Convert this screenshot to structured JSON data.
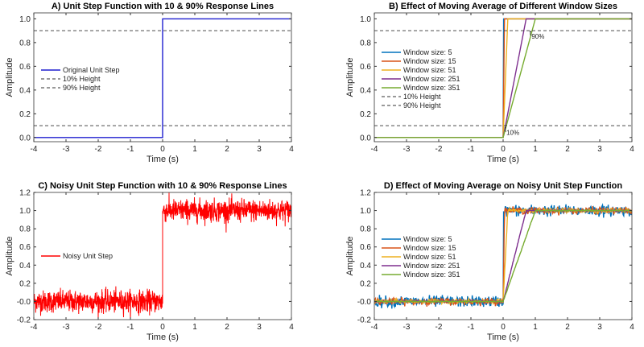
{
  "chart_data": [
    {
      "type": "line",
      "title": "A) Unit Step Function with 10 & 90% Response Lines",
      "xlabel": "Time (s)",
      "ylabel": "Amplitude",
      "xlim": [
        -4,
        4
      ],
      "ylim": [
        -0.05,
        1.05
      ],
      "xticks": [
        "-4",
        "-3",
        "-2",
        "-1",
        "0",
        "1",
        "2",
        "3",
        "4"
      ],
      "yticks": [
        "0.0",
        "0.2",
        "0.4",
        "0.6",
        "0.8",
        "1.0"
      ],
      "legend_position": "center-left",
      "series": [
        {
          "name": "Original Unit Step",
          "color": "#1f1fcf",
          "style": "solid",
          "points": [
            [
              -4,
              0
            ],
            [
              0,
              0
            ],
            [
              0,
              1
            ],
            [
              4,
              1
            ]
          ]
        },
        {
          "name": "10% Height",
          "color": "#333333",
          "style": "dashed",
          "points": [
            [
              -4,
              0.1
            ],
            [
              4,
              0.1
            ]
          ]
        },
        {
          "name": "90% Height",
          "color": "#333333",
          "style": "dashed",
          "points": [
            [
              -4,
              0.9
            ],
            [
              4,
              0.9
            ]
          ]
        }
      ]
    },
    {
      "type": "line",
      "title": "B) Effect of Moving Average of Different Window Sizes",
      "xlabel": "Time (s)",
      "ylabel": "Amplitude",
      "xlim": [
        -4,
        4
      ],
      "ylim": [
        -0.05,
        1.05
      ],
      "xticks": [
        "-4",
        "-3",
        "-2",
        "-1",
        "0",
        "1",
        "2",
        "3",
        "4"
      ],
      "yticks": [
        "0.0",
        "0.2",
        "0.4",
        "0.6",
        "0.8",
        "1.0"
      ],
      "legend_position": "center-left",
      "annotations": [
        {
          "text": "t",
          "sub": "90%",
          "x": 0.82,
          "y": 0.86
        },
        {
          "text": "t",
          "sub": "10%",
          "x": 0.04,
          "y": 0.05
        }
      ],
      "series": [
        {
          "name": "Window size: 5",
          "color": "#0072BD",
          "style": "solid",
          "points": [
            [
              -4,
              0
            ],
            [
              0,
              0
            ],
            [
              0.014,
              1
            ],
            [
              4,
              1
            ]
          ]
        },
        {
          "name": "Window size: 15",
          "color": "#D95319",
          "style": "solid",
          "points": [
            [
              -4,
              0
            ],
            [
              0,
              0
            ],
            [
              0.043,
              1
            ],
            [
              4,
              1
            ]
          ]
        },
        {
          "name": "Window size: 51",
          "color": "#EDB120",
          "style": "solid",
          "points": [
            [
              -4,
              0
            ],
            [
              0,
              0
            ],
            [
              0.145,
              1
            ],
            [
              4,
              1
            ]
          ]
        },
        {
          "name": "Window size: 251",
          "color": "#7E2F8E",
          "style": "solid",
          "points": [
            [
              -4,
              0
            ],
            [
              0,
              0
            ],
            [
              0.715,
              1
            ],
            [
              4,
              1
            ]
          ]
        },
        {
          "name": "Window size: 351",
          "color": "#77AC30",
          "style": "solid",
          "points": [
            [
              -4,
              0
            ],
            [
              0,
              0
            ],
            [
              1.0,
              1
            ],
            [
              4,
              1
            ]
          ]
        },
        {
          "name": "10% Height",
          "color": "#333333",
          "style": "dashed",
          "points": [
            [
              -4,
              0.1
            ],
            [
              4,
              0.1
            ]
          ]
        },
        {
          "name": "90% Height",
          "color": "#333333",
          "style": "dashed",
          "points": [
            [
              -4,
              0.9
            ],
            [
              4,
              0.9
            ]
          ]
        }
      ]
    },
    {
      "type": "line",
      "title": "C) Noisy Unit Step Function with 10 & 90% Response Lines",
      "xlabel": "Time (s)",
      "ylabel": "Amplitude",
      "xlim": [
        -4,
        4
      ],
      "ylim": [
        -0.2,
        1.2
      ],
      "xticks": [
        "-4",
        "-3",
        "-2",
        "-1",
        "0",
        "1",
        "2",
        "3",
        "4"
      ],
      "yticks": [
        "-0.2",
        "-0.0",
        "0.2",
        "0.4",
        "0.6",
        "0.8",
        "1.0",
        "1.2"
      ],
      "legend_position": "center-left",
      "series": [
        {
          "name": "Noisy Unit Step",
          "color": "#FF0000",
          "style": "solid",
          "points": [
            [
              -4,
              0
            ],
            [
              0,
              0
            ],
            [
              0,
              1
            ],
            [
              4,
              1
            ]
          ],
          "noise_std": 0.06
        }
      ]
    },
    {
      "type": "line",
      "title": "D) Effect of Moving Average on Noisy Unit Step Function",
      "xlabel": "Time (s)",
      "ylabel": "Amplitude",
      "xlim": [
        -4,
        4
      ],
      "ylim": [
        -0.2,
        1.2
      ],
      "xticks": [
        "-4",
        "-3",
        "-2",
        "-1",
        "0",
        "1",
        "2",
        "3",
        "4"
      ],
      "yticks": [
        "-0.2",
        "-0.0",
        "0.2",
        "0.4",
        "0.6",
        "0.8",
        "1.0",
        "1.2"
      ],
      "legend_position": "center-left",
      "series": [
        {
          "name": "Window size: 5",
          "color": "#0072BD",
          "style": "solid",
          "points": [
            [
              -4,
              0
            ],
            [
              0,
              0
            ],
            [
              0.014,
              1
            ],
            [
              4,
              1
            ]
          ],
          "noise_std": 0.03
        },
        {
          "name": "Window size: 15",
          "color": "#D95319",
          "style": "solid",
          "points": [
            [
              -4,
              0
            ],
            [
              0,
              0
            ],
            [
              0.043,
              1
            ],
            [
              4,
              1
            ]
          ],
          "noise_std": 0.018
        },
        {
          "name": "Window size: 51",
          "color": "#EDB120",
          "style": "solid",
          "points": [
            [
              -4,
              0
            ],
            [
              0,
              0
            ],
            [
              0.145,
              1
            ],
            [
              4,
              1
            ]
          ],
          "noise_std": 0.01
        },
        {
          "name": "Window size: 251",
          "color": "#7E2F8E",
          "style": "solid",
          "points": [
            [
              -4,
              0
            ],
            [
              0,
              0
            ],
            [
              0.715,
              1
            ],
            [
              4,
              1
            ]
          ],
          "noise_std": 0.004
        },
        {
          "name": "Window size: 351",
          "color": "#77AC30",
          "style": "solid",
          "points": [
            [
              -4,
              0
            ],
            [
              0,
              0
            ],
            [
              1.0,
              1
            ],
            [
              4,
              1
            ]
          ],
          "noise_std": 0.003
        }
      ]
    }
  ]
}
